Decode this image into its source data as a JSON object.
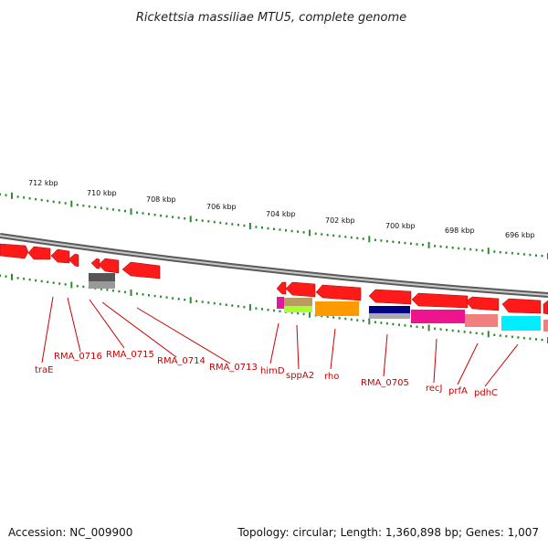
{
  "title": "Rickettsia massiliae MTU5, complete genome",
  "footer": {
    "accession": "Accession: NC_009900",
    "stats": "Topology: circular; Length: 1,360,898 bp; Genes: 1,007"
  },
  "colors": {
    "backbone": "#888888",
    "gene": "#ff0000",
    "leader": "#cc0000",
    "tick": "#2e8b2e"
  },
  "ticks": [
    {
      "label": "712 kbp"
    },
    {
      "label": "710 kbp"
    },
    {
      "label": "708 kbp"
    },
    {
      "label": "706 kbp"
    },
    {
      "label": "704 kbp"
    },
    {
      "label": "702 kbp"
    },
    {
      "label": "700 kbp"
    },
    {
      "label": "698 kbp"
    },
    {
      "label": "696 kbp"
    }
  ],
  "genes": [
    {
      "label": "traE"
    },
    {
      "label": "RMA_0716"
    },
    {
      "label": "RMA_0715"
    },
    {
      "label": "RMA_0714"
    },
    {
      "label": "RMA_0713"
    },
    {
      "label": "himD"
    },
    {
      "label": "sppA2"
    },
    {
      "label": "rho"
    },
    {
      "label": "RMA_0705"
    },
    {
      "label": "recJ"
    },
    {
      "label": "prfA"
    },
    {
      "label": "pdhC"
    }
  ]
}
